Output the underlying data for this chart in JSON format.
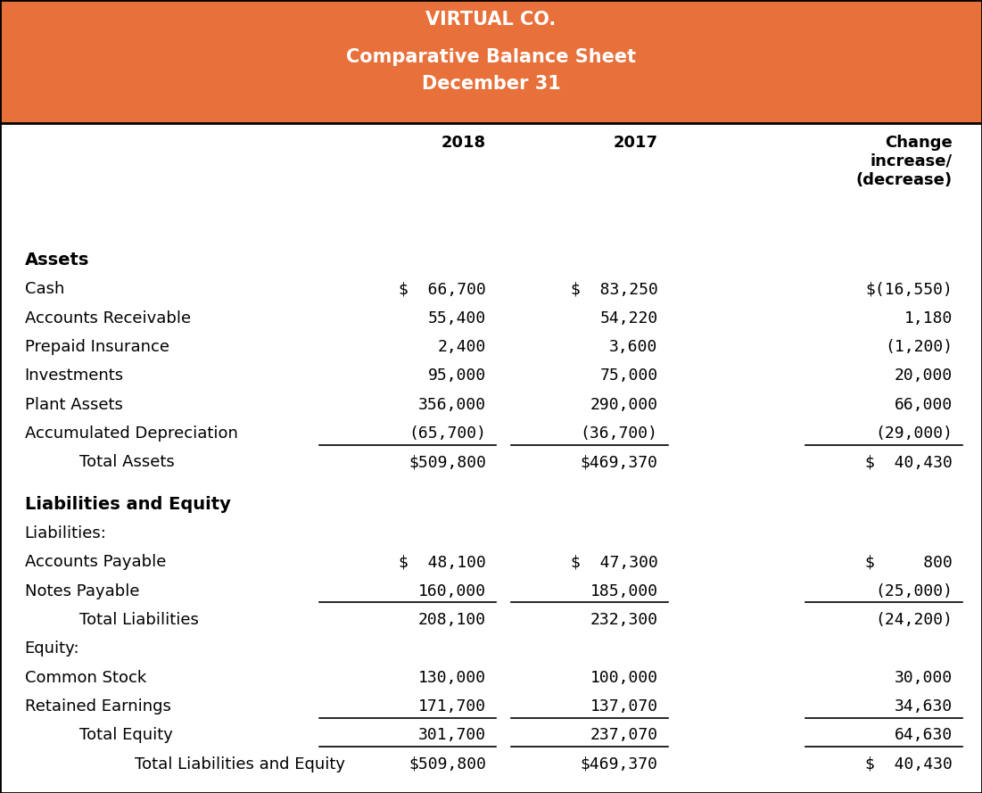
{
  "title_lines": [
    "VIRTUAL CO.",
    "Comparative Balance Sheet",
    "December 31"
  ],
  "header_bg_color": "#E8703A",
  "header_text_color": "#FFFFFF",
  "body_bg_color": "#FFFFFF",
  "border_color": "#000000",
  "text_color": "#000000",
  "rows": [
    {
      "label": "Assets",
      "v2018": "",
      "v2017": "",
      "vchange": "",
      "style": "bold_left",
      "underline": false,
      "indent": 0
    },
    {
      "label": "Cash",
      "v2018": "$  66,700",
      "v2017": "$  83,250",
      "vchange": "$(16,550)",
      "style": "normal",
      "underline": false,
      "indent": 0
    },
    {
      "label": "Accounts Receivable",
      "v2018": "55,400",
      "v2017": "54,220",
      "vchange": "1,180",
      "style": "normal",
      "underline": false,
      "indent": 0
    },
    {
      "label": "Prepaid Insurance",
      "v2018": "2,400",
      "v2017": "3,600",
      "vchange": "(1,200)",
      "style": "normal",
      "underline": false,
      "indent": 0
    },
    {
      "label": "Investments",
      "v2018": "95,000",
      "v2017": "75,000",
      "vchange": "20,000",
      "style": "normal",
      "underline": false,
      "indent": 0
    },
    {
      "label": "Plant Assets",
      "v2018": "356,000",
      "v2017": "290,000",
      "vchange": "66,000",
      "style": "normal",
      "underline": false,
      "indent": 0
    },
    {
      "label": "Accumulated Depreciation",
      "v2018": "(65,700)",
      "v2017": "(36,700)",
      "vchange": "(29,000)",
      "style": "normal",
      "underline": true,
      "indent": 0
    },
    {
      "label": "    Total Assets",
      "v2018": "$509,800",
      "v2017": "$469,370",
      "vchange": "$  40,430",
      "style": "normal",
      "underline": false,
      "indent": 1
    },
    {
      "label": "",
      "v2018": "",
      "v2017": "",
      "vchange": "",
      "style": "spacer",
      "underline": false,
      "indent": 0
    },
    {
      "label": "Liabilities and Equity",
      "v2018": "",
      "v2017": "",
      "vchange": "",
      "style": "bold_left",
      "underline": false,
      "indent": 0
    },
    {
      "label": "Liabilities:",
      "v2018": "",
      "v2017": "",
      "vchange": "",
      "style": "normal",
      "underline": false,
      "indent": 0
    },
    {
      "label": "Accounts Payable",
      "v2018": "$  48,100",
      "v2017": "$  47,300",
      "vchange": "$     800",
      "style": "normal",
      "underline": false,
      "indent": 0
    },
    {
      "label": "Notes Payable",
      "v2018": "160,000",
      "v2017": "185,000",
      "vchange": "(25,000)",
      "style": "normal",
      "underline": true,
      "indent": 0
    },
    {
      "label": "    Total Liabilities",
      "v2018": "208,100",
      "v2017": "232,300",
      "vchange": "(24,200)",
      "style": "normal",
      "underline": false,
      "indent": 1
    },
    {
      "label": "Equity:",
      "v2018": "",
      "v2017": "",
      "vchange": "",
      "style": "normal",
      "underline": false,
      "indent": 0
    },
    {
      "label": "Common Stock",
      "v2018": "130,000",
      "v2017": "100,000",
      "vchange": "30,000",
      "style": "normal",
      "underline": false,
      "indent": 0
    },
    {
      "label": "Retained Earnings",
      "v2018": "171,700",
      "v2017": "137,070",
      "vchange": "34,630",
      "style": "normal",
      "underline": true,
      "indent": 0
    },
    {
      "label": "    Total Equity",
      "v2018": "301,700",
      "v2017": "237,070",
      "vchange": "64,630",
      "style": "normal",
      "underline": true,
      "indent": 1
    },
    {
      "label": "        Total Liabilities and Equity",
      "v2018": "$509,800",
      "v2017": "$469,370",
      "vchange": "$  40,430",
      "style": "normal",
      "underline": false,
      "indent": 2
    }
  ],
  "figsize": [
    11.01,
    8.89
  ],
  "dpi": 100
}
